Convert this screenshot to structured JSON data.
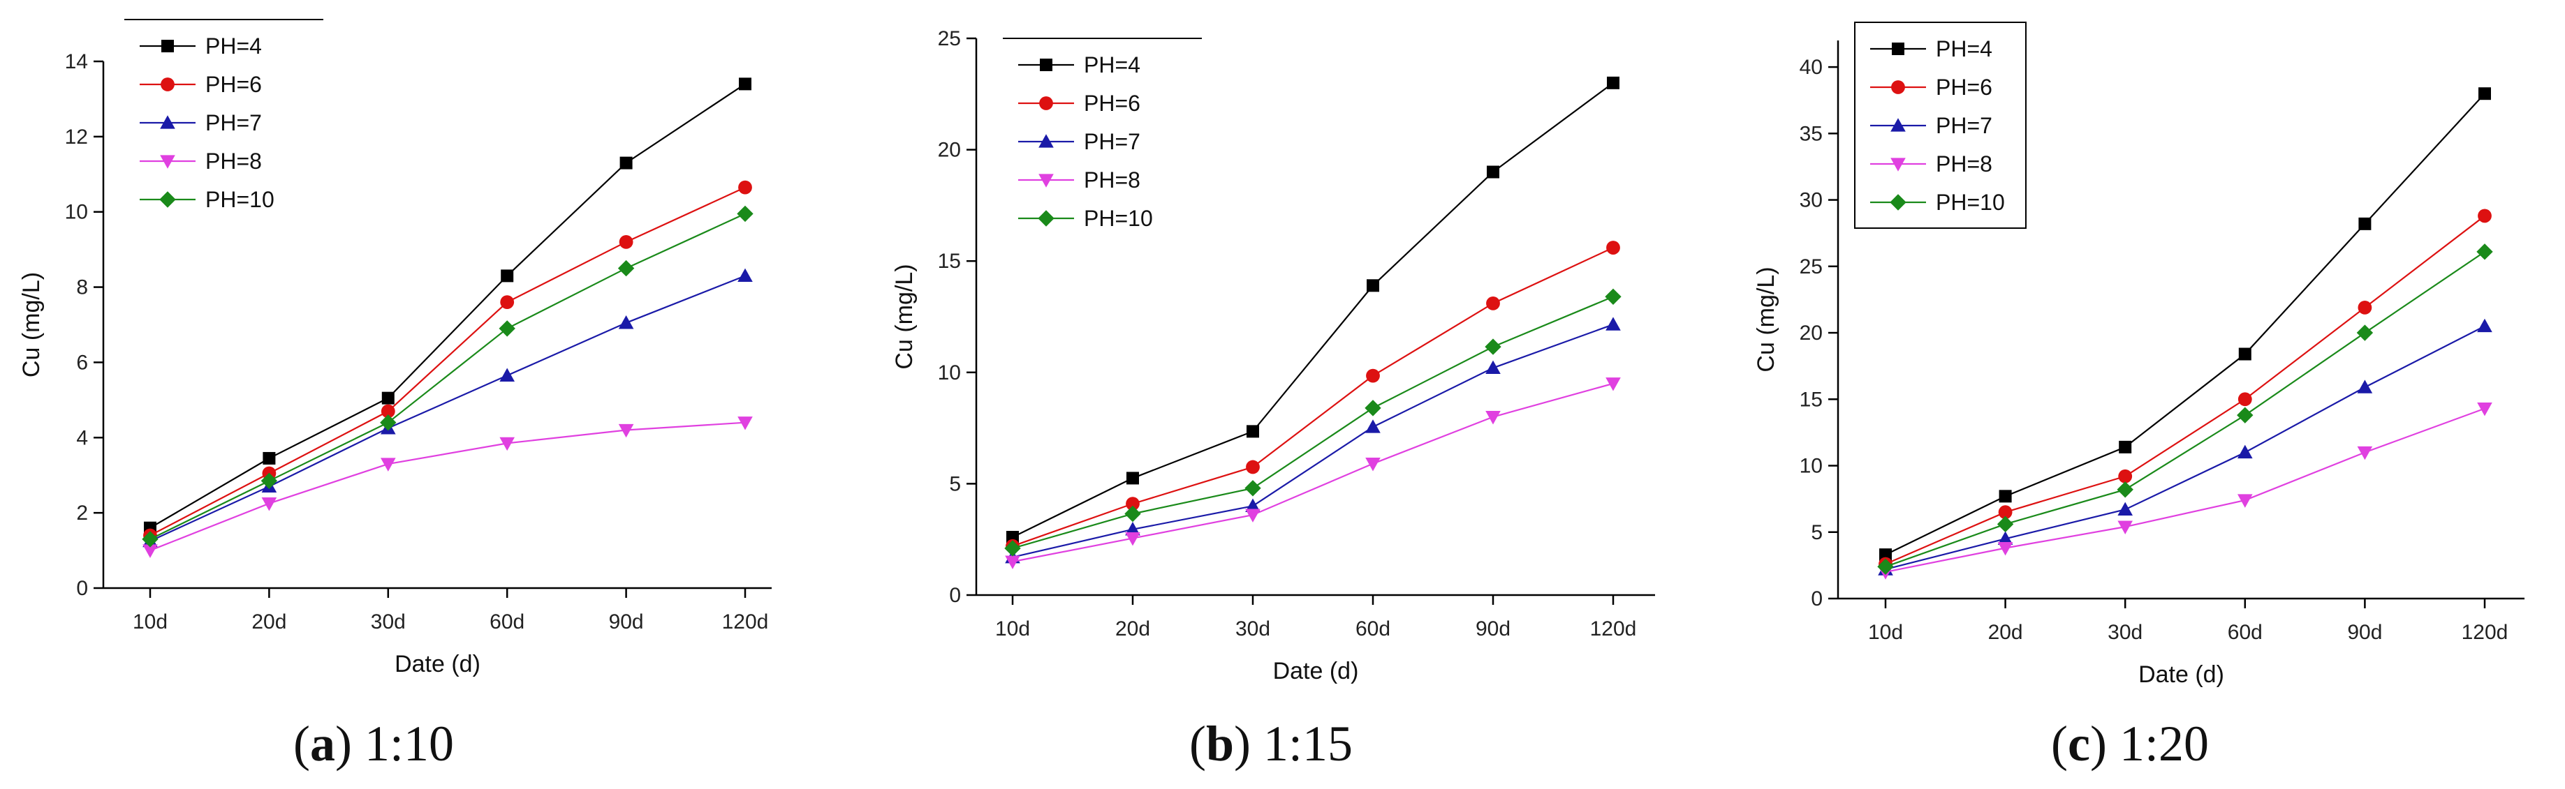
{
  "figure_captions": [
    {
      "label": "a",
      "text": " 1:10"
    },
    {
      "label": "b",
      "text": " 1:15"
    },
    {
      "label": "c",
      "text": " 1:20"
    }
  ],
  "chart_data": [
    {
      "type": "line",
      "title": "",
      "xlabel": "Date (d)",
      "ylabel": "Cu (mg/L)",
      "categories": [
        "10d",
        "20d",
        "30d",
        "60d",
        "90d",
        "120d"
      ],
      "ylim": [
        0,
        14
      ],
      "yticks": [
        0,
        2,
        4,
        6,
        8,
        10,
        12,
        14
      ],
      "legend_position": "top-left",
      "series": [
        {
          "name": "PH=4",
          "color": "#000000",
          "marker": "square",
          "values": [
            1.6,
            3.45,
            5.05,
            8.3,
            11.3,
            13.4
          ]
        },
        {
          "name": "PH=6",
          "color": "#dd1111",
          "marker": "circle",
          "values": [
            1.4,
            3.05,
            4.7,
            7.6,
            9.2,
            10.65
          ]
        },
        {
          "name": "PH=7",
          "color": "#1a1aa8",
          "marker": "triangle-up",
          "values": [
            1.25,
            2.7,
            4.25,
            5.65,
            7.05,
            8.3
          ]
        },
        {
          "name": "PH=8",
          "color": "#e040e0",
          "marker": "triangle-down",
          "values": [
            1.0,
            2.25,
            3.3,
            3.85,
            4.2,
            4.4
          ]
        },
        {
          "name": "PH=10",
          "color": "#1a8a1a",
          "marker": "diamond",
          "values": [
            1.3,
            2.85,
            4.4,
            6.9,
            8.5,
            9.95
          ]
        }
      ]
    },
    {
      "type": "line",
      "title": "",
      "xlabel": "Date (d)",
      "ylabel": "Cu (mg/L)",
      "categories": [
        "10d",
        "20d",
        "30d",
        "60d",
        "90d",
        "120d"
      ],
      "ylim": [
        0,
        25
      ],
      "yticks": [
        0,
        5,
        10,
        15,
        20,
        25
      ],
      "legend_position": "top-left",
      "series": [
        {
          "name": "PH=4",
          "color": "#000000",
          "marker": "square",
          "values": [
            2.6,
            5.25,
            7.35,
            13.9,
            19.0,
            23.0
          ]
        },
        {
          "name": "PH=6",
          "color": "#dd1111",
          "marker": "circle",
          "values": [
            2.2,
            4.1,
            5.75,
            9.85,
            13.1,
            15.6
          ]
        },
        {
          "name": "PH=7",
          "color": "#1a1aa8",
          "marker": "triangle-up",
          "values": [
            1.7,
            2.95,
            4.0,
            7.55,
            10.2,
            12.15
          ]
        },
        {
          "name": "PH=8",
          "color": "#e040e0",
          "marker": "triangle-down",
          "values": [
            1.5,
            2.55,
            3.6,
            5.9,
            8.0,
            9.5
          ]
        },
        {
          "name": "PH=10",
          "color": "#1a8a1a",
          "marker": "diamond",
          "values": [
            2.1,
            3.65,
            4.8,
            8.4,
            11.15,
            13.4
          ]
        }
      ]
    },
    {
      "type": "line",
      "title": "",
      "xlabel": "Date (d)",
      "ylabel": "Cu (mg/L)",
      "categories": [
        "10d",
        "20d",
        "30d",
        "60d",
        "90d",
        "120d"
      ],
      "ylim": [
        0,
        42
      ],
      "yticks": [
        0,
        5,
        10,
        15,
        20,
        25,
        30,
        35,
        40
      ],
      "legend_position": "top-left",
      "series": [
        {
          "name": "PH=4",
          "color": "#000000",
          "marker": "square",
          "values": [
            3.3,
            7.7,
            11.4,
            18.4,
            28.2,
            38.0
          ]
        },
        {
          "name": "PH=6",
          "color": "#dd1111",
          "marker": "circle",
          "values": [
            2.6,
            6.5,
            9.2,
            15.0,
            21.9,
            28.8
          ]
        },
        {
          "name": "PH=7",
          "color": "#1a1aa8",
          "marker": "triangle-up",
          "values": [
            2.2,
            4.5,
            6.7,
            11.0,
            15.9,
            20.5
          ]
        },
        {
          "name": "PH=8",
          "color": "#e040e0",
          "marker": "triangle-down",
          "values": [
            2.0,
            3.8,
            5.4,
            7.4,
            11.0,
            14.3
          ]
        },
        {
          "name": "PH=10",
          "color": "#1a8a1a",
          "marker": "diamond",
          "values": [
            2.4,
            5.6,
            8.2,
            13.8,
            20.0,
            26.1
          ]
        }
      ]
    }
  ]
}
